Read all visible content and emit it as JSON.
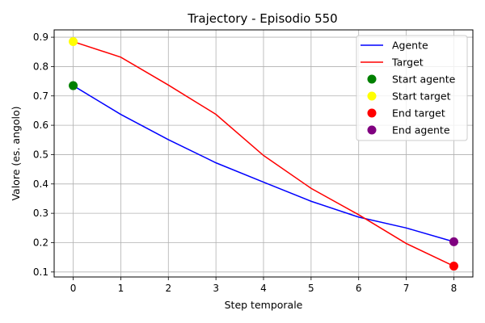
{
  "chart_data": {
    "type": "line",
    "title": "Trajectory - Episodio 550",
    "xlabel": "Step temporale",
    "ylabel": "Valore (es. angolo)",
    "xlim": [
      -0.4,
      8.4
    ],
    "ylim": [
      0.083,
      0.925
    ],
    "xticks": [
      0,
      1,
      2,
      3,
      4,
      5,
      6,
      7,
      8
    ],
    "yticks": [
      0.1,
      0.2,
      0.3,
      0.4,
      0.5,
      0.6,
      0.7,
      0.8,
      0.9
    ],
    "grid": true,
    "legend_position": "top-right",
    "x": [
      0,
      1,
      2,
      3,
      4,
      5,
      6,
      7,
      8
    ],
    "series": [
      {
        "name": "Agente",
        "color": "#0000ff",
        "values": [
          0.735,
          0.637,
          0.551,
          0.472,
          0.406,
          0.341,
          0.287,
          0.25,
          0.203
        ]
      },
      {
        "name": "Target",
        "color": "#ff0000",
        "values": [
          0.885,
          0.832,
          0.737,
          0.637,
          0.497,
          0.385,
          0.295,
          0.197,
          0.12
        ]
      }
    ],
    "markers": [
      {
        "name": "Start agente",
        "color": "#008000",
        "x": 0,
        "y": 0.735
      },
      {
        "name": "Start target",
        "color": "#ffff00",
        "x": 0,
        "y": 0.885
      },
      {
        "name": "End target",
        "color": "#ff0000",
        "x": 8,
        "y": 0.12
      },
      {
        "name": "End agente",
        "color": "#800080",
        "x": 8,
        "y": 0.203
      }
    ]
  }
}
